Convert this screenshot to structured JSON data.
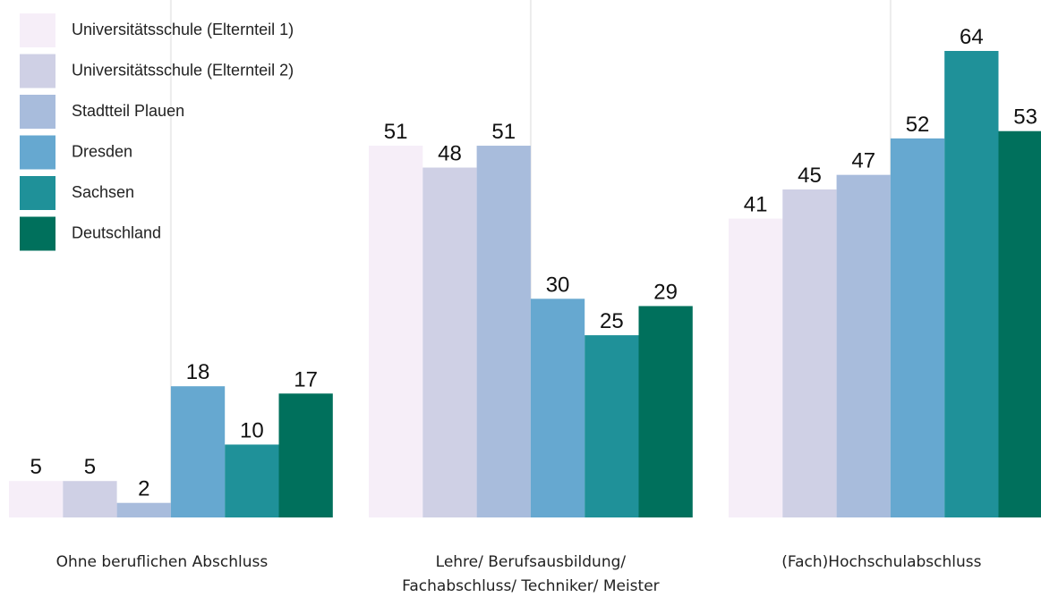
{
  "chart_data": {
    "type": "bar",
    "categories": [
      "Ohne beruflichen Abschluss",
      "Lehre/ Berufsausbildung/ Fachabschluss/ Techniker/ Meister",
      "(Fach)Hochschulabschluss"
    ],
    "series": [
      {
        "name": "Universitätsschule (Elternteil 1)",
        "color": "#f6eef8",
        "values": [
          5,
          51,
          41
        ]
      },
      {
        "name": "Universitätsschule (Elternteil 2)",
        "color": "#cfd0e5",
        "values": [
          5,
          48,
          45
        ]
      },
      {
        "name": "Stadtteil Plauen",
        "color": "#a8bcdc",
        "values": [
          2,
          51,
          47
        ]
      },
      {
        "name": "Dresden",
        "color": "#66a8d0",
        "values": [
          18,
          30,
          52
        ]
      },
      {
        "name": "Sachsen",
        "color": "#1f9199",
        "values": [
          10,
          25,
          64
        ]
      },
      {
        "name": "Deutschland",
        "color": "#00705c",
        "values": [
          17,
          29,
          53
        ]
      }
    ],
    "legend": "top-left",
    "value_labels_shown": true
  }
}
